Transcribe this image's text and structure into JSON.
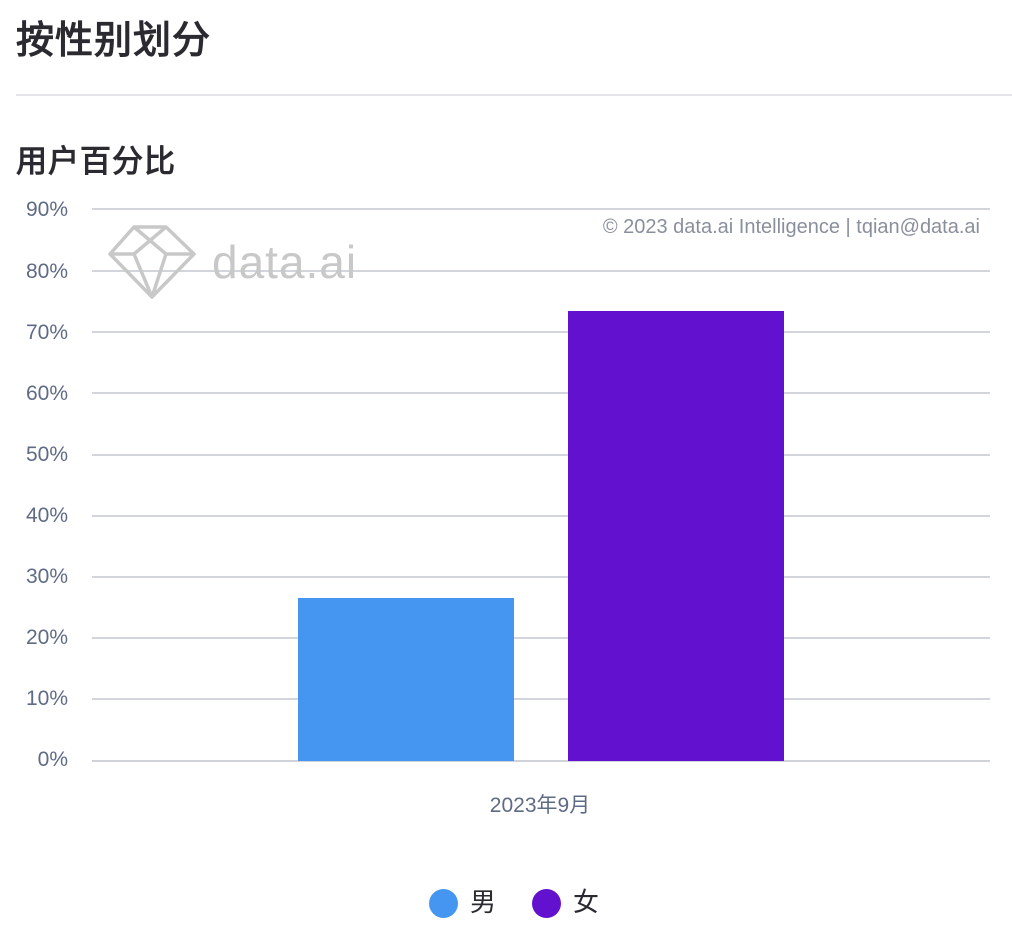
{
  "page": {
    "title": "按性别划分"
  },
  "chart": {
    "title": "用户百分比",
    "copyright": "© 2023 data.ai Intelligence | tqian@data.ai",
    "watermark": "data.ai",
    "yticks": [
      "90%",
      "80%",
      "70%",
      "60%",
      "50%",
      "40%",
      "30%",
      "20%",
      "10%",
      "0%"
    ],
    "xlabel": "2023年9月",
    "legend": [
      {
        "label": "男",
        "color": "#4596f1"
      },
      {
        "label": "女",
        "color": "#6211ce"
      }
    ]
  },
  "chart_data": {
    "type": "bar",
    "title": "用户百分比",
    "categories": [
      "2023年9月"
    ],
    "series": [
      {
        "name": "男",
        "color": "#4596f1",
        "values": [
          26.6
        ]
      },
      {
        "name": "女",
        "color": "#6211ce",
        "values": [
          73.4
        ]
      }
    ],
    "xlabel": "",
    "ylabel": "",
    "ylim": [
      0,
      90
    ],
    "yticks": [
      0,
      10,
      20,
      30,
      40,
      50,
      60,
      70,
      80,
      90
    ],
    "ytick_format": "percent",
    "grid": true,
    "legend_position": "bottom"
  }
}
